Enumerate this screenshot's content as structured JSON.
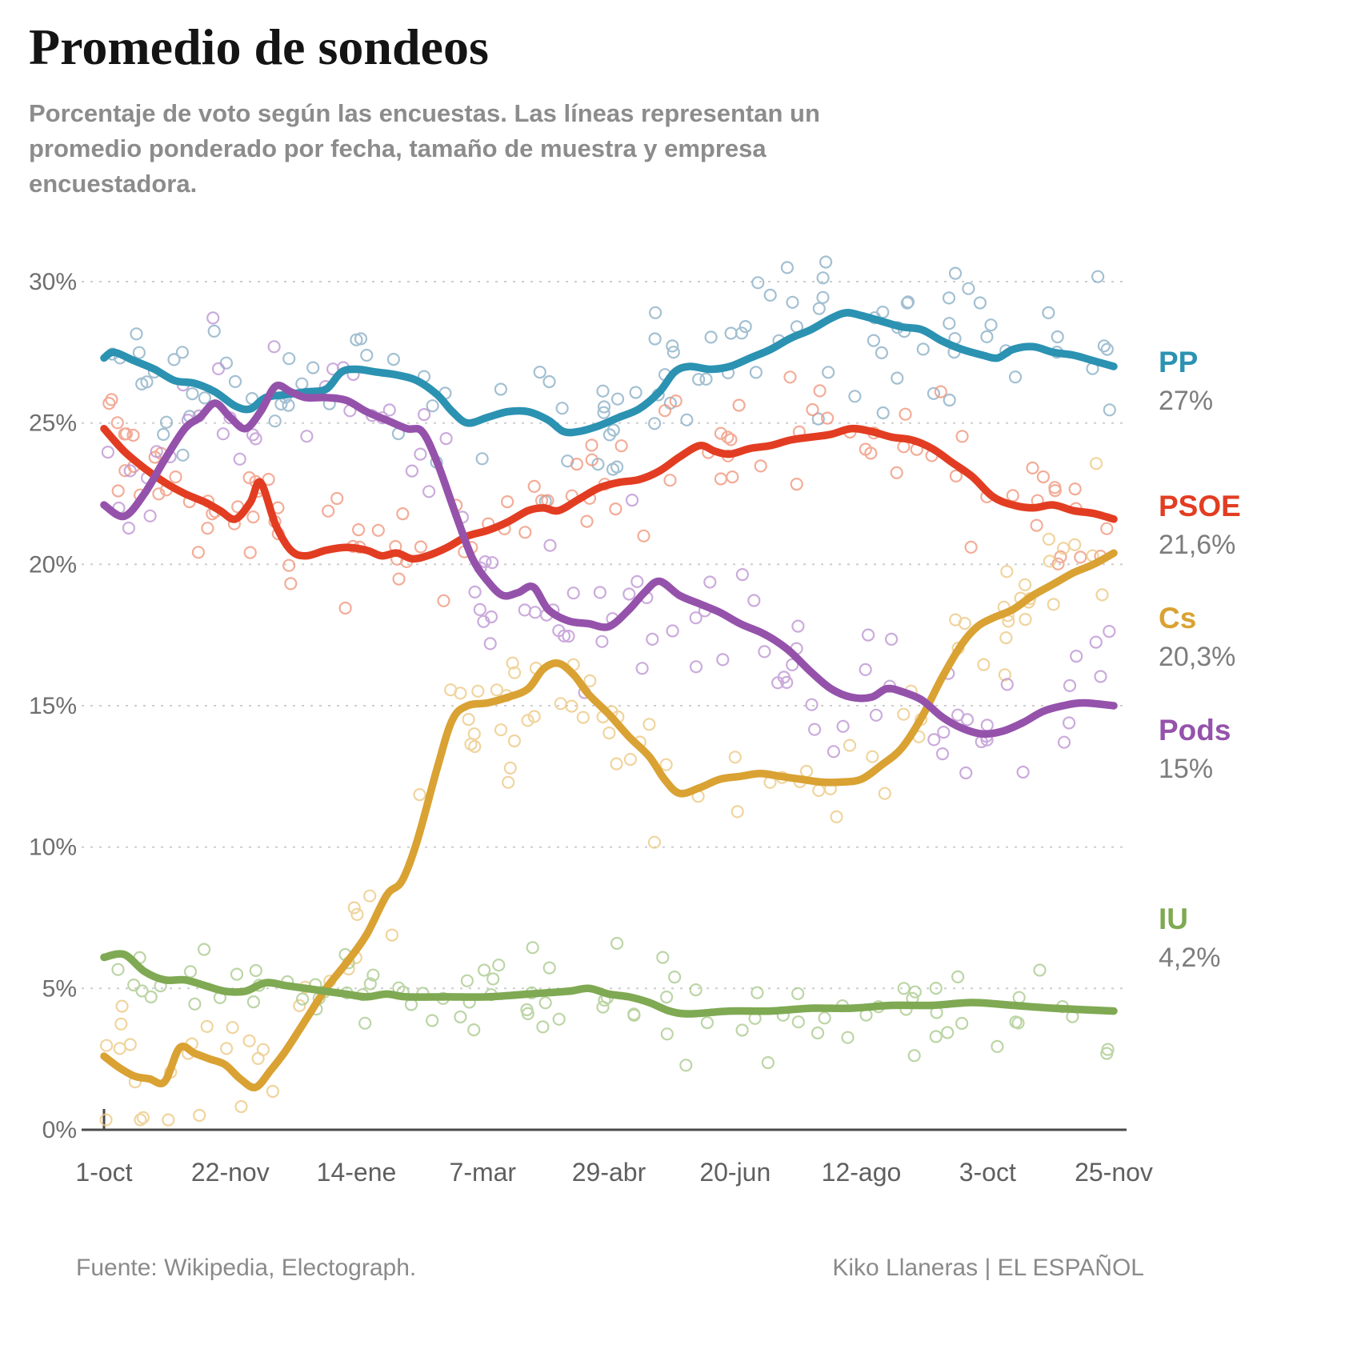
{
  "header": {
    "title": "Promedio de sondeos",
    "subtitle": "Porcentaje de voto según las encuestas. Las líneas representan un promedio ponderado por fecha, tamaño de muestra y empresa encuestadora."
  },
  "footer": {
    "source": "Fuente: Wikipedia, Electograph.",
    "credit": "Kiko Llaneras  |  EL ESPAÑOL"
  },
  "chart_data": {
    "type": "line",
    "title": "Promedio de sondeos",
    "xlabel": "",
    "ylabel": "",
    "ylim": [
      0,
      30
    ],
    "grid": "horizontal-dashed",
    "legend_position": "right",
    "x_tick_labels": [
      "1-oct",
      "22-nov",
      "14-ene",
      "7-mar",
      "29-abr",
      "20-jun",
      "12-ago",
      "3-oct",
      "25-nov"
    ],
    "y_tick_labels": [
      "0%",
      "5%",
      "10%",
      "15%",
      "20%",
      "25%",
      "30%"
    ],
    "series": [
      {
        "name": "PP",
        "final_label": "27%",
        "final_value": 27,
        "color": "#2b92b2",
        "scatter_color": "#8aafc6",
        "scatter": {
          "count": 115,
          "spread": 2.4
        },
        "points": [
          [
            0,
            27.3
          ],
          [
            0.01,
            27.5
          ],
          [
            0.03,
            27.2
          ],
          [
            0.05,
            26.9
          ],
          [
            0.07,
            26.5
          ],
          [
            0.09,
            26.4
          ],
          [
            0.11,
            26.1
          ],
          [
            0.13,
            25.6
          ],
          [
            0.145,
            25.5
          ],
          [
            0.16,
            25.9
          ],
          [
            0.18,
            26.0
          ],
          [
            0.2,
            26.1
          ],
          [
            0.22,
            26.2
          ],
          [
            0.235,
            26.8
          ],
          [
            0.25,
            26.9
          ],
          [
            0.27,
            26.8
          ],
          [
            0.29,
            26.7
          ],
          [
            0.31,
            26.5
          ],
          [
            0.33,
            26.0
          ],
          [
            0.345,
            25.4
          ],
          [
            0.36,
            25.0
          ],
          [
            0.38,
            25.2
          ],
          [
            0.4,
            25.4
          ],
          [
            0.42,
            25.4
          ],
          [
            0.44,
            25.1
          ],
          [
            0.455,
            24.7
          ],
          [
            0.47,
            24.7
          ],
          [
            0.49,
            24.9
          ],
          [
            0.51,
            25.2
          ],
          [
            0.53,
            25.5
          ],
          [
            0.55,
            26.1
          ],
          [
            0.565,
            26.8
          ],
          [
            0.58,
            27.0
          ],
          [
            0.6,
            26.9
          ],
          [
            0.62,
            27.0
          ],
          [
            0.64,
            27.3
          ],
          [
            0.66,
            27.6
          ],
          [
            0.68,
            28.0
          ],
          [
            0.7,
            28.3
          ],
          [
            0.72,
            28.7
          ],
          [
            0.735,
            28.9
          ],
          [
            0.75,
            28.8
          ],
          [
            0.77,
            28.6
          ],
          [
            0.79,
            28.4
          ],
          [
            0.81,
            28.3
          ],
          [
            0.83,
            27.9
          ],
          [
            0.85,
            27.6
          ],
          [
            0.87,
            27.4
          ],
          [
            0.885,
            27.3
          ],
          [
            0.9,
            27.6
          ],
          [
            0.92,
            27.7
          ],
          [
            0.94,
            27.5
          ],
          [
            0.96,
            27.4
          ],
          [
            0.98,
            27.2
          ],
          [
            1,
            27.0
          ]
        ]
      },
      {
        "name": "PSOE",
        "final_label": "21,6%",
        "final_value": 21.6,
        "color": "#e23d22",
        "scatter_color": "#f0967c",
        "scatter": {
          "count": 115,
          "spread": 2.2
        },
        "points": [
          [
            0,
            24.8
          ],
          [
            0.02,
            24.0
          ],
          [
            0.04,
            23.4
          ],
          [
            0.06,
            22.9
          ],
          [
            0.08,
            22.5
          ],
          [
            0.1,
            22.2
          ],
          [
            0.115,
            21.9
          ],
          [
            0.13,
            21.6
          ],
          [
            0.145,
            22.2
          ],
          [
            0.155,
            22.9
          ],
          [
            0.17,
            21.4
          ],
          [
            0.185,
            20.5
          ],
          [
            0.2,
            20.3
          ],
          [
            0.22,
            20.5
          ],
          [
            0.24,
            20.6
          ],
          [
            0.26,
            20.5
          ],
          [
            0.275,
            20.3
          ],
          [
            0.29,
            20.4
          ],
          [
            0.305,
            20.2
          ],
          [
            0.32,
            20.3
          ],
          [
            0.34,
            20.6
          ],
          [
            0.36,
            21.0
          ],
          [
            0.38,
            21.2
          ],
          [
            0.4,
            21.5
          ],
          [
            0.42,
            21.9
          ],
          [
            0.435,
            22.0
          ],
          [
            0.45,
            21.9
          ],
          [
            0.47,
            22.3
          ],
          [
            0.49,
            22.7
          ],
          [
            0.51,
            22.9
          ],
          [
            0.53,
            23.0
          ],
          [
            0.55,
            23.3
          ],
          [
            0.57,
            23.8
          ],
          [
            0.59,
            24.2
          ],
          [
            0.605,
            24.0
          ],
          [
            0.62,
            23.9
          ],
          [
            0.64,
            24.1
          ],
          [
            0.66,
            24.2
          ],
          [
            0.68,
            24.4
          ],
          [
            0.7,
            24.5
          ],
          [
            0.72,
            24.6
          ],
          [
            0.74,
            24.8
          ],
          [
            0.76,
            24.7
          ],
          [
            0.78,
            24.5
          ],
          [
            0.8,
            24.4
          ],
          [
            0.82,
            24.1
          ],
          [
            0.84,
            23.6
          ],
          [
            0.86,
            23.1
          ],
          [
            0.88,
            22.4
          ],
          [
            0.9,
            22.1
          ],
          [
            0.92,
            22.0
          ],
          [
            0.94,
            22.1
          ],
          [
            0.96,
            21.9
          ],
          [
            0.98,
            21.8
          ],
          [
            1,
            21.6
          ]
        ]
      },
      {
        "name": "Cs",
        "final_label": "20,3%",
        "final_value": 20.3,
        "color": "#d9a233",
        "scatter_color": "#ecc983",
        "scatter": {
          "count": 105,
          "spread": 2.2
        },
        "points": [
          [
            0,
            2.6
          ],
          [
            0.015,
            2.2
          ],
          [
            0.03,
            1.9
          ],
          [
            0.045,
            1.8
          ],
          [
            0.06,
            1.7
          ],
          [
            0.075,
            2.9
          ],
          [
            0.09,
            2.7
          ],
          [
            0.105,
            2.5
          ],
          [
            0.12,
            2.3
          ],
          [
            0.135,
            1.8
          ],
          [
            0.15,
            1.5
          ],
          [
            0.165,
            2.1
          ],
          [
            0.18,
            2.8
          ],
          [
            0.2,
            3.9
          ],
          [
            0.22,
            5.0
          ],
          [
            0.24,
            5.9
          ],
          [
            0.26,
            6.9
          ],
          [
            0.28,
            8.3
          ],
          [
            0.295,
            8.8
          ],
          [
            0.31,
            10.2
          ],
          [
            0.33,
            12.8
          ],
          [
            0.345,
            14.5
          ],
          [
            0.36,
            15.0
          ],
          [
            0.38,
            15.1
          ],
          [
            0.4,
            15.3
          ],
          [
            0.42,
            15.6
          ],
          [
            0.435,
            16.3
          ],
          [
            0.45,
            16.5
          ],
          [
            0.465,
            16.1
          ],
          [
            0.48,
            15.4
          ],
          [
            0.5,
            14.7
          ],
          [
            0.52,
            13.9
          ],
          [
            0.54,
            13.2
          ],
          [
            0.555,
            12.4
          ],
          [
            0.57,
            11.9
          ],
          [
            0.59,
            12.1
          ],
          [
            0.61,
            12.4
          ],
          [
            0.63,
            12.5
          ],
          [
            0.65,
            12.6
          ],
          [
            0.67,
            12.5
          ],
          [
            0.69,
            12.4
          ],
          [
            0.71,
            12.3
          ],
          [
            0.73,
            12.3
          ],
          [
            0.75,
            12.4
          ],
          [
            0.77,
            12.9
          ],
          [
            0.79,
            13.5
          ],
          [
            0.81,
            14.6
          ],
          [
            0.83,
            16.0
          ],
          [
            0.85,
            17.2
          ],
          [
            0.865,
            17.8
          ],
          [
            0.88,
            18.1
          ],
          [
            0.9,
            18.4
          ],
          [
            0.92,
            18.9
          ],
          [
            0.94,
            19.3
          ],
          [
            0.96,
            19.7
          ],
          [
            0.98,
            20.0
          ],
          [
            1,
            20.4
          ]
        ]
      },
      {
        "name": "Pods",
        "final_label": "15%",
        "final_value": 15,
        "color": "#9552ab",
        "scatter_color": "#bd94d3",
        "scatter": {
          "count": 105,
          "spread": 2.2
        },
        "points": [
          [
            0,
            22.1
          ],
          [
            0.02,
            21.7
          ],
          [
            0.04,
            22.5
          ],
          [
            0.06,
            23.7
          ],
          [
            0.08,
            24.8
          ],
          [
            0.095,
            25.2
          ],
          [
            0.11,
            25.7
          ],
          [
            0.125,
            25.2
          ],
          [
            0.14,
            24.8
          ],
          [
            0.155,
            25.4
          ],
          [
            0.17,
            26.3
          ],
          [
            0.185,
            26.1
          ],
          [
            0.2,
            25.9
          ],
          [
            0.22,
            25.9
          ],
          [
            0.24,
            25.8
          ],
          [
            0.26,
            25.4
          ],
          [
            0.28,
            25.1
          ],
          [
            0.3,
            24.8
          ],
          [
            0.315,
            24.7
          ],
          [
            0.33,
            23.6
          ],
          [
            0.35,
            21.6
          ],
          [
            0.365,
            20.2
          ],
          [
            0.38,
            19.4
          ],
          [
            0.395,
            18.9
          ],
          [
            0.41,
            19.0
          ],
          [
            0.425,
            19.2
          ],
          [
            0.44,
            18.4
          ],
          [
            0.46,
            18.0
          ],
          [
            0.48,
            17.9
          ],
          [
            0.5,
            17.8
          ],
          [
            0.52,
            18.4
          ],
          [
            0.535,
            19.0
          ],
          [
            0.55,
            19.4
          ],
          [
            0.57,
            18.9
          ],
          [
            0.59,
            18.6
          ],
          [
            0.61,
            18.3
          ],
          [
            0.63,
            17.9
          ],
          [
            0.65,
            17.6
          ],
          [
            0.665,
            17.3
          ],
          [
            0.68,
            16.9
          ],
          [
            0.7,
            16.2
          ],
          [
            0.72,
            15.6
          ],
          [
            0.74,
            15.3
          ],
          [
            0.76,
            15.3
          ],
          [
            0.775,
            15.6
          ],
          [
            0.79,
            15.5
          ],
          [
            0.81,
            15.2
          ],
          [
            0.83,
            14.6
          ],
          [
            0.85,
            14.2
          ],
          [
            0.87,
            14.0
          ],
          [
            0.89,
            14.1
          ],
          [
            0.91,
            14.4
          ],
          [
            0.93,
            14.8
          ],
          [
            0.95,
            15.0
          ],
          [
            0.97,
            15.1
          ],
          [
            1,
            15.0
          ]
        ]
      },
      {
        "name": "IU",
        "final_label": "4,2%",
        "final_value": 4.2,
        "color": "#7fa953",
        "scatter_color": "#aaca8e",
        "scatter": {
          "count": 95,
          "spread": 1.6
        },
        "points": [
          [
            0,
            6.1
          ],
          [
            0.02,
            6.2
          ],
          [
            0.04,
            5.6
          ],
          [
            0.06,
            5.3
          ],
          [
            0.08,
            5.3
          ],
          [
            0.1,
            5.1
          ],
          [
            0.12,
            4.9
          ],
          [
            0.14,
            4.9
          ],
          [
            0.16,
            5.2
          ],
          [
            0.18,
            5.1
          ],
          [
            0.2,
            5.0
          ],
          [
            0.22,
            4.9
          ],
          [
            0.24,
            4.8
          ],
          [
            0.26,
            4.7
          ],
          [
            0.28,
            4.8
          ],
          [
            0.3,
            4.7
          ],
          [
            0.34,
            4.7
          ],
          [
            0.38,
            4.7
          ],
          [
            0.42,
            4.8
          ],
          [
            0.46,
            4.9
          ],
          [
            0.48,
            5.0
          ],
          [
            0.5,
            4.8
          ],
          [
            0.52,
            4.7
          ],
          [
            0.54,
            4.5
          ],
          [
            0.56,
            4.2
          ],
          [
            0.58,
            4.1
          ],
          [
            0.62,
            4.2
          ],
          [
            0.66,
            4.2
          ],
          [
            0.7,
            4.3
          ],
          [
            0.74,
            4.3
          ],
          [
            0.78,
            4.4
          ],
          [
            0.82,
            4.4
          ],
          [
            0.86,
            4.5
          ],
          [
            0.9,
            4.4
          ],
          [
            0.94,
            4.3
          ],
          [
            1,
            4.2
          ]
        ]
      }
    ]
  }
}
